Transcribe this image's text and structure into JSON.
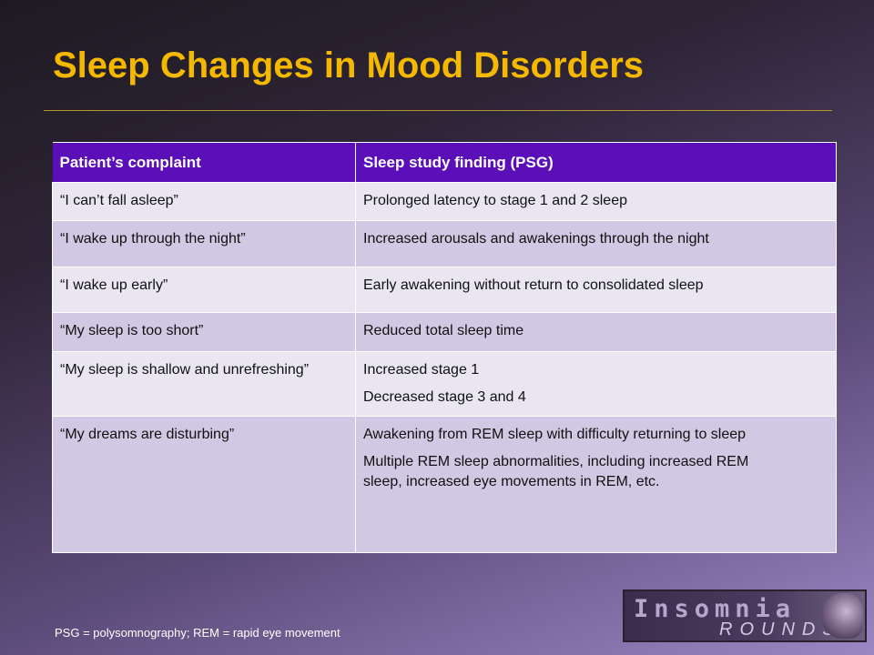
{
  "slide": {
    "title": "Sleep Changes in Mood Disorders",
    "footnote": "PSG = polysomnography; REM = rapid eye movement"
  },
  "table": {
    "headers": [
      "Patient’s complaint",
      "Sleep study finding (PSG)"
    ],
    "rows": [
      {
        "complaint": "“I can’t fall asleep”",
        "findings": [
          "Prolonged latency to stage 1 and 2 sleep"
        ]
      },
      {
        "complaint": "“I wake up through the night”",
        "findings": [
          "Increased arousals and awakenings through the night"
        ]
      },
      {
        "complaint": "“I wake up early”",
        "findings": [
          "Early awakening without return to consolidated sleep"
        ]
      },
      {
        "complaint": "“My sleep is too short”",
        "findings": [
          "Reduced total sleep time"
        ]
      },
      {
        "complaint": "“My sleep is shallow and unrefreshing”",
        "findings": [
          "Increased stage 1",
          "Decreased stage 3 and 4"
        ]
      },
      {
        "complaint": "“My dreams are disturbing”",
        "findings": [
          "Awakening from REM sleep with difficulty returning to sleep",
          "Multiple REM sleep abnormalities, including increased REM sleep, increased eye movements in REM, etc."
        ]
      }
    ]
  },
  "logo": {
    "line1": "Insomnia",
    "line2": "ROUNDS"
  },
  "colors": {
    "title": "#f5b800",
    "header_bg": "#5b0fb8",
    "row_light": "#e9e5f1",
    "row_dark": "#d1c8e3"
  }
}
